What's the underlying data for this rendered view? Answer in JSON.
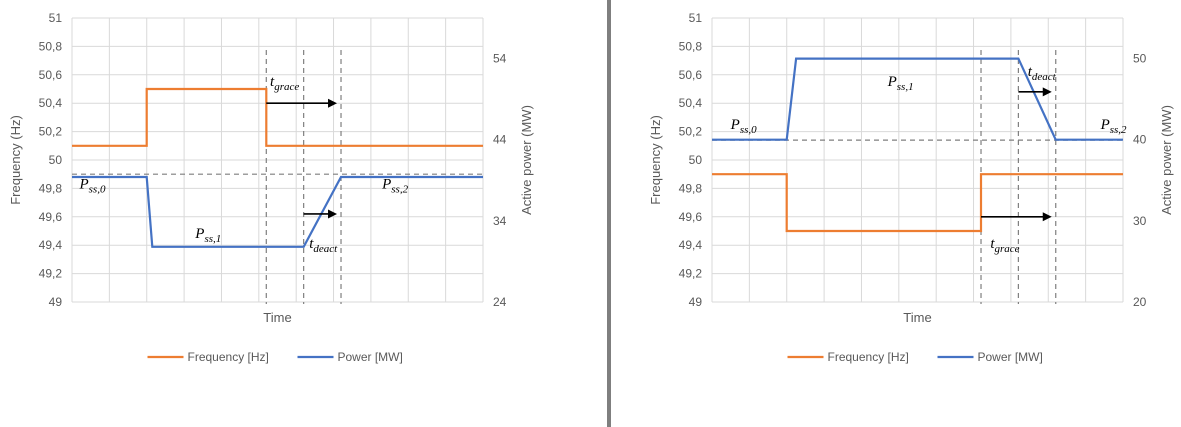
{
  "colors": {
    "frequency": "#ED7D31",
    "power": "#4472C4",
    "grid": "#D9D9D9",
    "divider": "#7F7F7F",
    "dashed": "#7F7F7F",
    "arrow": "#000000"
  },
  "chart_data": [
    {
      "type": "line",
      "title": "",
      "xlabel": "Time",
      "ylabel": "Frequency (Hz)",
      "y2label": "Active power (MW)",
      "ylim": [
        49,
        51
      ],
      "y2lim": [
        24,
        59
      ],
      "yticks": [
        "49",
        "49,2",
        "49,4",
        "49,6",
        "49,8",
        "50",
        "50,2",
        "50,4",
        "50,6",
        "50,8",
        "51"
      ],
      "y2ticks": [
        "24",
        "34",
        "44",
        "54"
      ],
      "x_divisions": 11,
      "grid": true,
      "legend": "bottom",
      "series": [
        {
          "name": "Frequency [Hz]",
          "axis": "left",
          "color": "#ED7D31",
          "points": [
            [
              0,
              50.1
            ],
            [
              2,
              50.1
            ],
            [
              2,
              50.5
            ],
            [
              5.2,
              50.5
            ],
            [
              5.2,
              50.1
            ],
            [
              11,
              50.1
            ]
          ]
        },
        {
          "name": "Power [MW]",
          "axis": "right",
          "color": "#4472C4",
          "points": [
            [
              0,
              39.4
            ],
            [
              2,
              39.4
            ],
            [
              2.15,
              30.8
            ],
            [
              6.2,
              30.8
            ],
            [
              7.2,
              39.4
            ],
            [
              11,
              39.4
            ]
          ]
        }
      ],
      "reference_lines": {
        "horizontal_dashed": 49.9,
        "vertical_dashed": [
          5.2,
          6.2,
          7.2
        ]
      },
      "annotations": [
        {
          "main": "P",
          "sub": "ss,0",
          "x": 0.2,
          "y": 49.8
        },
        {
          "main": "P",
          "sub": "ss,1",
          "x": 3.3,
          "y": 49.45
        },
        {
          "main": "P",
          "sub": "ss,2",
          "x": 8.3,
          "y": 49.8
        },
        {
          "main": "t",
          "sub": "grace",
          "x": 5.3,
          "y": 50.52
        },
        {
          "main": "t",
          "sub": "deact",
          "x": 6.35,
          "y": 49.38
        }
      ],
      "arrows": [
        {
          "x0": 5.2,
          "x1": 7.2,
          "y": 50.4
        },
        {
          "x0": 6.2,
          "x1": 7.2,
          "y": 49.62
        }
      ]
    },
    {
      "type": "line",
      "title": "",
      "xlabel": "Time",
      "ylabel": "Frequency (Hz)",
      "y2label": "Active power (MW)",
      "ylim": [
        49,
        51
      ],
      "y2lim": [
        20,
        55
      ],
      "yticks": [
        "49",
        "49,2",
        "49,4",
        "49,6",
        "49,8",
        "50",
        "50,2",
        "50,4",
        "50,6",
        "50,8",
        "51"
      ],
      "y2ticks": [
        "20",
        "30",
        "40",
        "50"
      ],
      "x_divisions": 11,
      "grid": true,
      "legend": "bottom",
      "series": [
        {
          "name": "Frequency [Hz]",
          "axis": "left",
          "color": "#ED7D31",
          "points": [
            [
              0,
              49.9
            ],
            [
              2,
              49.9
            ],
            [
              2,
              49.5
            ],
            [
              7.2,
              49.5
            ],
            [
              7.2,
              49.9
            ],
            [
              11,
              49.9
            ]
          ]
        },
        {
          "name": "Power [MW]",
          "axis": "right",
          "color": "#4472C4",
          "points": [
            [
              0,
              40
            ],
            [
              2,
              40
            ],
            [
              2.25,
              50
            ],
            [
              8.2,
              50
            ],
            [
              9.2,
              40
            ],
            [
              11,
              40
            ]
          ]
        }
      ],
      "reference_lines": {
        "horizontal_dashed": 50.14,
        "vertical_dashed": [
          7.2,
          8.2,
          9.2
        ]
      },
      "annotations": [
        {
          "main": "P",
          "sub": "ss,0",
          "x": 0.5,
          "y": 50.22
        },
        {
          "main": "P",
          "sub": "ss,1",
          "x": 4.7,
          "y": 50.52
        },
        {
          "main": "P",
          "sub": "ss,2",
          "x": 10.4,
          "y": 50.22
        },
        {
          "main": "t",
          "sub": "deact",
          "x": 8.45,
          "y": 50.59
        },
        {
          "main": "t",
          "sub": "grace",
          "x": 7.45,
          "y": 49.38
        }
      ],
      "arrows": [
        {
          "x0": 8.2,
          "x1": 9.2,
          "y": 50.48
        },
        {
          "x0": 7.2,
          "x1": 9.2,
          "y": 49.6
        }
      ]
    }
  ]
}
